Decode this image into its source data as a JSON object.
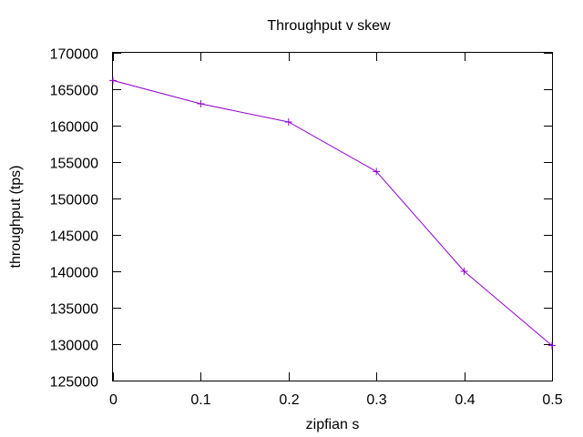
{
  "chart_data": {
    "type": "line",
    "title": "Throughput v skew",
    "xlabel": "zipfian s",
    "ylabel": "throughput (tps)",
    "xlim": [
      0,
      0.5
    ],
    "ylim": [
      125000,
      170000
    ],
    "x_ticks": [
      0,
      0.1,
      0.2,
      0.3,
      0.4,
      0.5
    ],
    "x_tick_labels": [
      "0",
      "0.1",
      "0.2",
      "0.3",
      "0.4",
      "0.5"
    ],
    "y_ticks": [
      125000,
      130000,
      135000,
      140000,
      145000,
      150000,
      155000,
      160000,
      165000,
      170000
    ],
    "y_tick_labels": [
      "125000",
      "130000",
      "135000",
      "140000",
      "145000",
      "150000",
      "155000",
      "160000",
      "165000",
      "170000"
    ],
    "grid": false,
    "legend": "none",
    "marker": "plus",
    "series": [
      {
        "color": "#9400d3",
        "x": [
          0,
          0.1,
          0.2,
          0.3,
          0.4,
          0.5
        ],
        "y": [
          166200,
          163000,
          160500,
          153700,
          140000,
          129800
        ]
      }
    ]
  }
}
